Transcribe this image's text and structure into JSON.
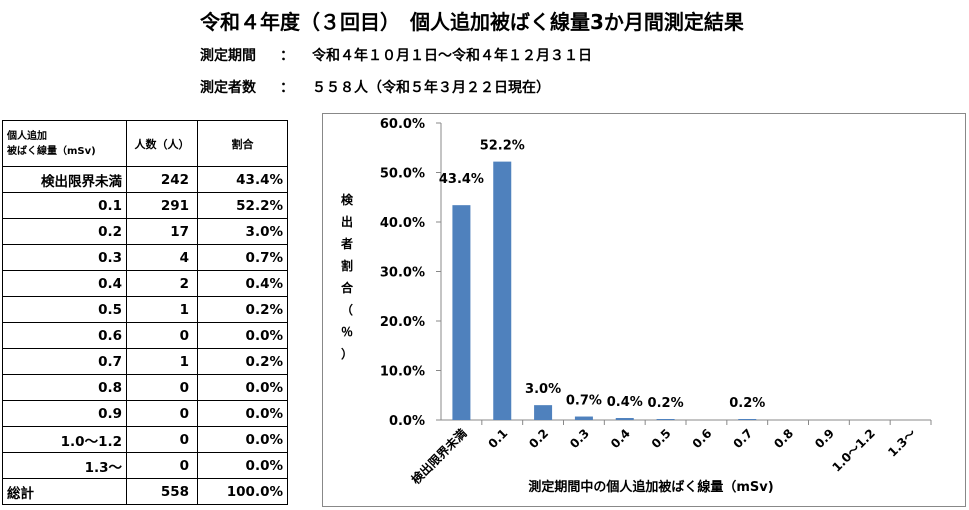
{
  "header": {
    "title": "令和４年度（３回目）　個人追加被ばく線量3か月間測定結果",
    "period_label": "測定期間",
    "period_colon": "：",
    "period_value": "令和４年１０月１日～令和４年１２月３１日",
    "count_label": "測定者数",
    "count_colon": "：",
    "count_value": "５５８人（令和５年３月２２日現在）"
  },
  "table": {
    "headers": {
      "dose": "個人追加\n被ばく線量（mSv)",
      "count": "人数（人）",
      "ratio": "割合"
    },
    "rows": [
      {
        "dose": "検出限界未満",
        "count": "242",
        "ratio": "43.4%"
      },
      {
        "dose": "0.1",
        "count": "291",
        "ratio": "52.2%"
      },
      {
        "dose": "0.2",
        "count": "17",
        "ratio": "3.0%"
      },
      {
        "dose": "0.3",
        "count": "4",
        "ratio": "0.7%"
      },
      {
        "dose": "0.4",
        "count": "2",
        "ratio": "0.4%"
      },
      {
        "dose": "0.5",
        "count": "1",
        "ratio": "0.2%"
      },
      {
        "dose": "0.6",
        "count": "0",
        "ratio": "0.0%"
      },
      {
        "dose": "0.7",
        "count": "1",
        "ratio": "0.2%"
      },
      {
        "dose": "0.8",
        "count": "0",
        "ratio": "0.0%"
      },
      {
        "dose": "0.9",
        "count": "0",
        "ratio": "0.0%"
      },
      {
        "dose": "1.0～1.2",
        "count": "0",
        "ratio": "0.0%"
      },
      {
        "dose": "1.3～",
        "count": "0",
        "ratio": "0.0%"
      }
    ],
    "total": {
      "dose": "総計",
      "count": "558",
      "ratio": "100.0%"
    }
  },
  "chart_data": {
    "type": "bar",
    "title": "",
    "xlabel": "測定期間中の個人追加被ばく線量（mSv)",
    "ylabel": "検出者割合（％）",
    "categories": [
      "検出限界未満",
      "0.1",
      "0.2",
      "0.3",
      "0.4",
      "0.5",
      "0.6",
      "0.7",
      "0.8",
      "0.9",
      "1.0～1.2",
      "1.3～"
    ],
    "values": [
      43.4,
      52.2,
      3.0,
      0.7,
      0.4,
      0.2,
      0.0,
      0.2,
      0.0,
      0.0,
      0.0,
      0.0
    ],
    "data_labels": [
      "43.4%",
      "52.2%",
      "3.0%",
      "0.7%",
      "0.4%",
      "0.2%",
      "",
      "0.2%",
      "",
      "",
      "",
      ""
    ],
    "yticks": [
      "0.0%",
      "10.0%",
      "20.0%",
      "30.0%",
      "40.0%",
      "50.0%",
      "60.0%"
    ],
    "ylim": [
      0,
      60
    ],
    "bar_color": "#4f81bd",
    "grid": false
  }
}
